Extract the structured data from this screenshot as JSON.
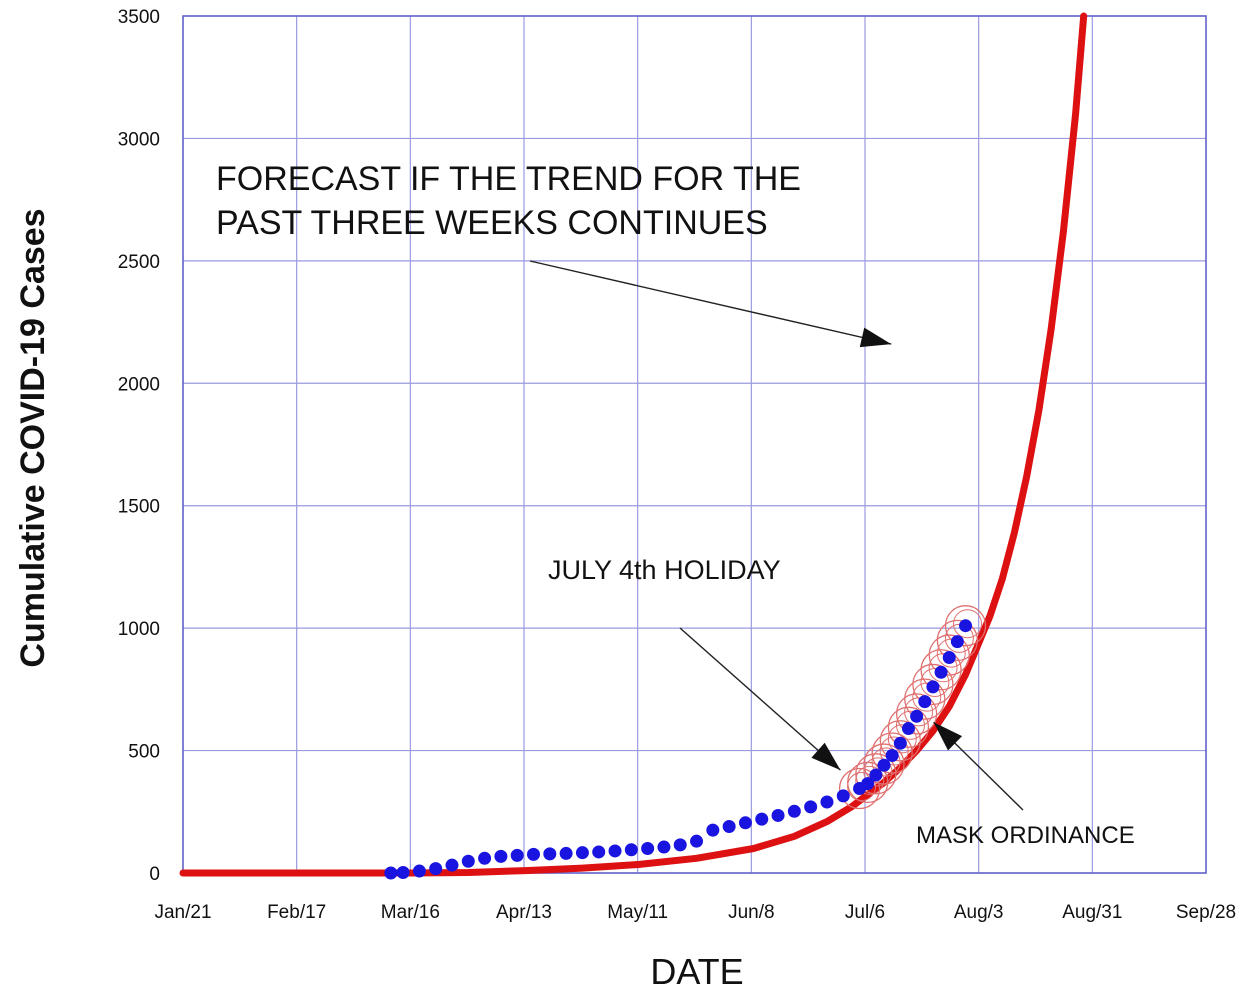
{
  "chart_data": {
    "type": "line",
    "title": "",
    "xlabel": "DATE",
    "ylabel": "Cumulative COVID-19 Cases",
    "x_tick_labels": [
      "Jan/21",
      "Feb/17",
      "Mar/16",
      "Apr/13",
      "May/11",
      "Jun/8",
      "Jul/6",
      "Aug/3",
      "Aug/31",
      "Sep/28"
    ],
    "x_range_days": [
      0,
      251
    ],
    "y_ticks": [
      0,
      500,
      1000,
      1500,
      2000,
      2500,
      3000,
      3500
    ],
    "ylim": [
      0,
      3500
    ],
    "grid": true,
    "series": [
      {
        "color": "#dd1111",
        "style": "line",
        "points": [
          [
            0,
            0
          ],
          [
            30,
            0
          ],
          [
            56,
            0
          ],
          [
            70,
            2
          ],
          [
            84,
            10
          ],
          [
            98,
            20
          ],
          [
            112,
            35
          ],
          [
            126,
            60
          ],
          [
            140,
            100
          ],
          [
            150,
            150
          ],
          [
            158,
            210
          ],
          [
            164,
            270
          ],
          [
            168,
            320
          ],
          [
            172,
            370
          ],
          [
            176,
            430
          ],
          [
            180,
            500
          ],
          [
            184,
            580
          ],
          [
            188,
            680
          ],
          [
            192,
            810
          ],
          [
            195,
            930
          ],
          [
            198,
            1050
          ],
          [
            201,
            1200
          ],
          [
            204,
            1390
          ],
          [
            207,
            1620
          ],
          [
            210,
            1890
          ],
          [
            213,
            2220
          ],
          [
            216,
            2620
          ],
          [
            219,
            3100
          ],
          [
            221,
            3500
          ]
        ]
      },
      {
        "color": "#1a14e0",
        "style": "markers",
        "points": [
          [
            51,
            0
          ],
          [
            54,
            2
          ],
          [
            58,
            8
          ],
          [
            62,
            18
          ],
          [
            66,
            32
          ],
          [
            70,
            48
          ],
          [
            74,
            60
          ],
          [
            78,
            68
          ],
          [
            82,
            72
          ],
          [
            86,
            76
          ],
          [
            90,
            78
          ],
          [
            94,
            80
          ],
          [
            98,
            83
          ],
          [
            102,
            86
          ],
          [
            106,
            90
          ],
          [
            110,
            95
          ],
          [
            114,
            100
          ],
          [
            118,
            106
          ],
          [
            122,
            115
          ],
          [
            126,
            130
          ],
          [
            130,
            175
          ],
          [
            134,
            190
          ],
          [
            138,
            205
          ],
          [
            142,
            220
          ],
          [
            146,
            235
          ],
          [
            150,
            252
          ],
          [
            154,
            270
          ],
          [
            158,
            290
          ],
          [
            162,
            315
          ],
          [
            166,
            345
          ],
          [
            168,
            365
          ],
          [
            170,
            400
          ],
          [
            172,
            440
          ],
          [
            174,
            480
          ],
          [
            176,
            530
          ],
          [
            178,
            590
          ],
          [
            180,
            640
          ],
          [
            182,
            700
          ],
          [
            184,
            760
          ],
          [
            186,
            820
          ],
          [
            188,
            880
          ],
          [
            190,
            945
          ],
          [
            192,
            1010
          ]
        ]
      },
      {
        "color": "#e07070",
        "style": "circles",
        "points": [
          [
            166,
            345
          ],
          [
            168,
            370
          ],
          [
            170,
            405
          ],
          [
            172,
            445
          ],
          [
            174,
            490
          ],
          [
            176,
            540
          ],
          [
            178,
            595
          ],
          [
            180,
            650
          ],
          [
            182,
            710
          ],
          [
            184,
            770
          ],
          [
            186,
            830
          ],
          [
            188,
            890
          ],
          [
            190,
            950
          ],
          [
            192,
            1010
          ]
        ]
      }
    ],
    "annotations": [
      {
        "lines": [
          "FORECAST IF THE TREND FOR THE",
          "PAST THREE WEEKS CONTINUES"
        ],
        "target": [
          175,
          2160
        ]
      },
      {
        "lines": [
          "JULY 4th HOLIDAY"
        ],
        "target": [
          165,
          420
        ]
      },
      {
        "lines": [
          "MASK ORDINANCE"
        ],
        "target": [
          180,
          640
        ]
      }
    ]
  }
}
